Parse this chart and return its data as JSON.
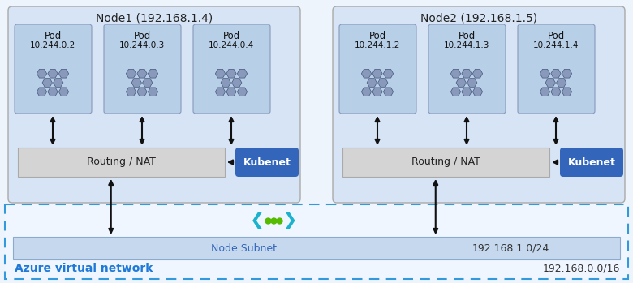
{
  "fig_width": 7.8,
  "fig_height": 3.49,
  "dpi": 100,
  "bg_color": "#eef4fb",
  "node_box_color": "#d6e4f5",
  "node_box_edge": "#aaaaaa",
  "pod_box_color": "#b8cfe8",
  "pod_box_edge": "#8899bb",
  "routing_box_color": "#d4d4d4",
  "routing_box_edge": "#aaaaaa",
  "kubenet_box_color": "#3366bb",
  "kubenet_text_color": "#ffffff",
  "subnet_box_color": "#c5d8ee",
  "subnet_box_edge": "#8aabcc",
  "azure_vnet_color": "#f0f6ff",
  "azure_vnet_edge": "#3399dd",
  "azure_vnet_label": "Azure virtual network",
  "azure_vnet_label_color": "#1e7ad6",
  "subnet_label": "Node Subnet",
  "subnet_label_color": "#3366bb",
  "subnet_cidr": "192.168.1.0/24",
  "azure_cidr": "192.168.0.0/16",
  "node1_label": "Node1 (192.168.1.4)",
  "node2_label": "Node2 (192.168.1.5)",
  "node1_pods": [
    "Pod\n10.244.0.2",
    "Pod\n10.244.0.3",
    "Pod\n10.244.0.4"
  ],
  "node2_pods": [
    "Pod\n10.244.1.2",
    "Pod\n10.244.1.3",
    "Pod\n10.244.1.4"
  ],
  "routing_label": "Routing / NAT",
  "kubenet_label": "Kubenet",
  "arrow_color": "#111111",
  "cyan_color": "#1ab2cc",
  "green_dot_color": "#55bb00",
  "pod_icon_color": "#8899bb",
  "pod_icon_edge": "#445577"
}
